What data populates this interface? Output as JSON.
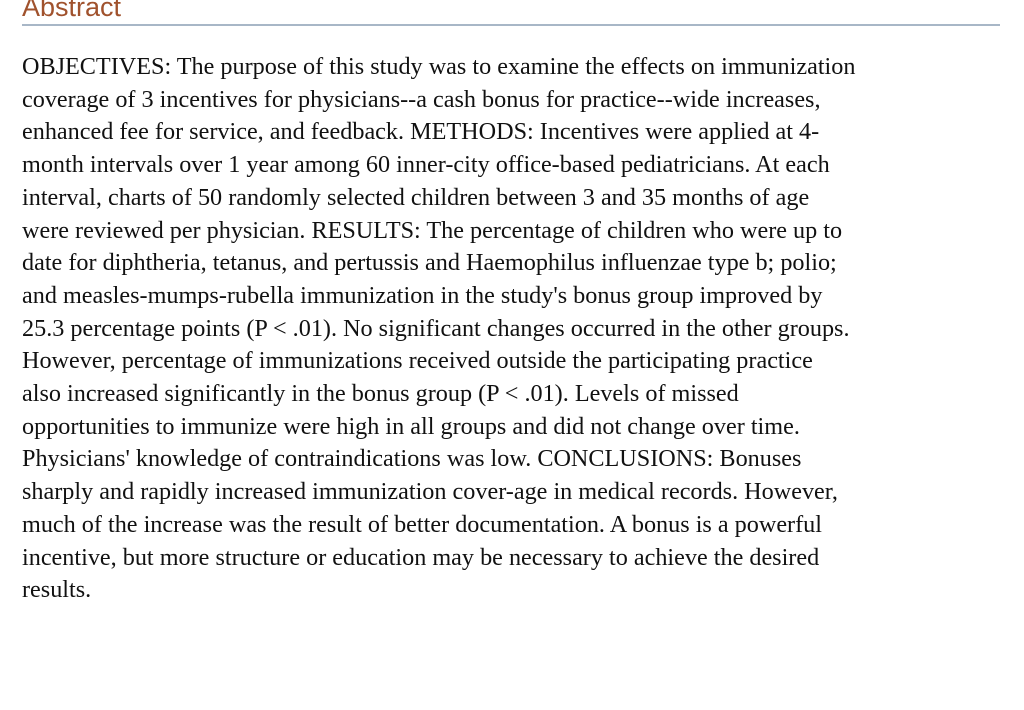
{
  "heading": "Abstract",
  "colors": {
    "heading": "#a0522d",
    "rule": "#a8b7c7",
    "text": "#111111"
  },
  "abstract_lines": [
    "OBJECTIVES: The purpose of this study was to examine the effects on immunization",
    "coverage of 3 incentives for physicians--a cash bonus for practice--wide increases,",
    "enhanced fee for service, and feedback. METHODS: Incentives were applied at 4-",
    "month intervals over 1 year among 60 inner-city office-based pediatricians. At each",
    "interval, charts of 50 randomly selected children between 3 and 35 months of age",
    "were reviewed per physician. RESULTS: The percentage of children who were up to",
    "date for diphtheria, tetanus, and pertussis and Haemophilus influenzae type b; polio;",
    "and measles-mumps-rubella immunization in the study's bonus group improved by",
    "25.3 percentage points (P < .01). No significant changes occurred in the other groups.",
    "However, percentage of immunizations received outside the participating practice",
    "also increased significantly in the bonus group (P < .01). Levels of missed",
    "opportunities to immunize were high in all groups and did not change over time.",
    "Physicians' knowledge of contraindications was low. CONCLUSIONS: Bonuses",
    "sharply and rapidly increased immunization cover-age in medical records. However,",
    "much of the increase was the result of better documentation. A bonus is a powerful",
    "incentive, but more structure or education may be necessary to achieve the desired",
    "results."
  ]
}
